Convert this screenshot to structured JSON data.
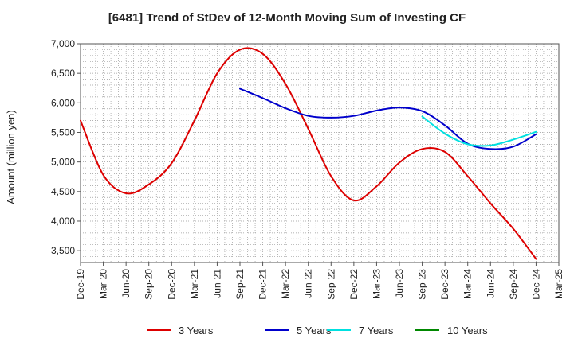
{
  "chart_data": {
    "type": "line",
    "title": "[6481]  Trend of StDev of 12-Month Moving Sum of Investing CF",
    "xlabel": "",
    "ylabel": "Amount (million yen)",
    "ylim": [
      3300,
      7000
    ],
    "yticks": [
      3500,
      4000,
      4500,
      5000,
      5500,
      6000,
      6500,
      7000
    ],
    "ytick_labels": [
      "3,500",
      "4,000",
      "4,500",
      "5,000",
      "5,500",
      "6,000",
      "6,500",
      "7,000"
    ],
    "x_tick_labels": [
      "Dec-19",
      "Mar-20",
      "Jun-20",
      "Sep-20",
      "Dec-20",
      "Mar-21",
      "Jun-21",
      "Sep-21",
      "Dec-21",
      "Mar-22",
      "Jun-22",
      "Sep-22",
      "Dec-22",
      "Mar-23",
      "Jun-23",
      "Sep-23",
      "Dec-23",
      "Mar-24",
      "Jun-24",
      "Sep-24",
      "Dec-24",
      "Mar-25"
    ],
    "x_range_months": [
      0,
      63
    ],
    "grid": true,
    "legend_position": "bottom",
    "series": [
      {
        "name": "3 Years",
        "color": "#dd0000",
        "x": [
          0,
          3,
          6,
          9,
          12,
          15,
          18,
          21,
          24,
          27,
          30,
          33,
          36,
          39,
          42,
          45,
          48,
          51,
          54,
          57,
          60
        ],
        "values": [
          5700,
          4780,
          4470,
          4620,
          4980,
          5700,
          6500,
          6900,
          6830,
          6320,
          5560,
          4760,
          4350,
          4590,
          4990,
          5220,
          5170,
          4760,
          4300,
          3870,
          3360
        ]
      },
      {
        "name": "5 Years",
        "color": "#0000cc",
        "x": [
          21,
          24,
          27,
          30,
          33,
          36,
          39,
          42,
          45,
          48,
          51,
          54,
          57,
          60
        ],
        "values": [
          6240,
          6080,
          5910,
          5780,
          5750,
          5780,
          5870,
          5920,
          5860,
          5620,
          5310,
          5220,
          5260,
          5470
        ]
      },
      {
        "name": "7 Years",
        "color": "#00e0e0",
        "x": [
          45,
          48,
          51,
          54,
          57,
          60
        ],
        "values": [
          5770,
          5480,
          5300,
          5280,
          5380,
          5510
        ]
      },
      {
        "name": "10 Years",
        "color": "#008800",
        "x": [],
        "values": []
      }
    ]
  }
}
